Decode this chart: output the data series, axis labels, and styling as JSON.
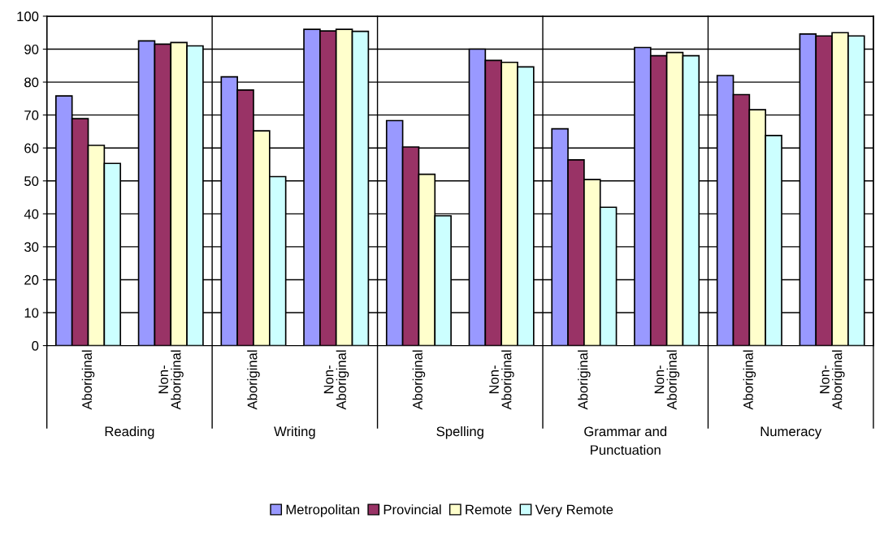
{
  "chart_data": {
    "type": "bar",
    "categories": [
      "Aboriginal",
      "Non-\nAboriginal",
      "Aboriginal",
      "Non-\nAboriginal",
      "Aboriginal",
      "Non-\nAboriginal",
      "Aboriginal",
      "Non-\nAboriginal",
      "Aboriginal",
      "Non-\nAboriginal"
    ],
    "series": [
      {
        "name": "Metropolitan",
        "color": "#9999ff",
        "values": [
          75.8,
          92.5,
          81.6,
          96,
          68.3,
          90,
          65.8,
          90.5,
          82,
          94.6
        ]
      },
      {
        "name": "Provincial",
        "color": "#993366",
        "values": [
          68.9,
          91.5,
          77.6,
          95.5,
          60.3,
          86.6,
          56.4,
          88,
          76.2,
          94
        ]
      },
      {
        "name": "Remote",
        "color": "#ffffcc",
        "values": [
          60.8,
          92,
          65.2,
          96,
          52,
          86,
          50.4,
          89,
          71.6,
          95
        ]
      },
      {
        "name": "Very Remote",
        "color": "#ccffff",
        "values": [
          55.3,
          91,
          51.3,
          95.4,
          39.4,
          84.6,
          42,
          88,
          63.8,
          94
        ]
      }
    ],
    "annotations": [
      "Reading",
      "Writing",
      "Spelling",
      "Grammar and\nPunctuation",
      "Numeracy"
    ],
    "ylim": [
      0,
      100
    ],
    "yticks": [
      0,
      10,
      20,
      30,
      40,
      50,
      60,
      70,
      80,
      90,
      100
    ],
    "grid": "y",
    "legend": "bottom"
  }
}
